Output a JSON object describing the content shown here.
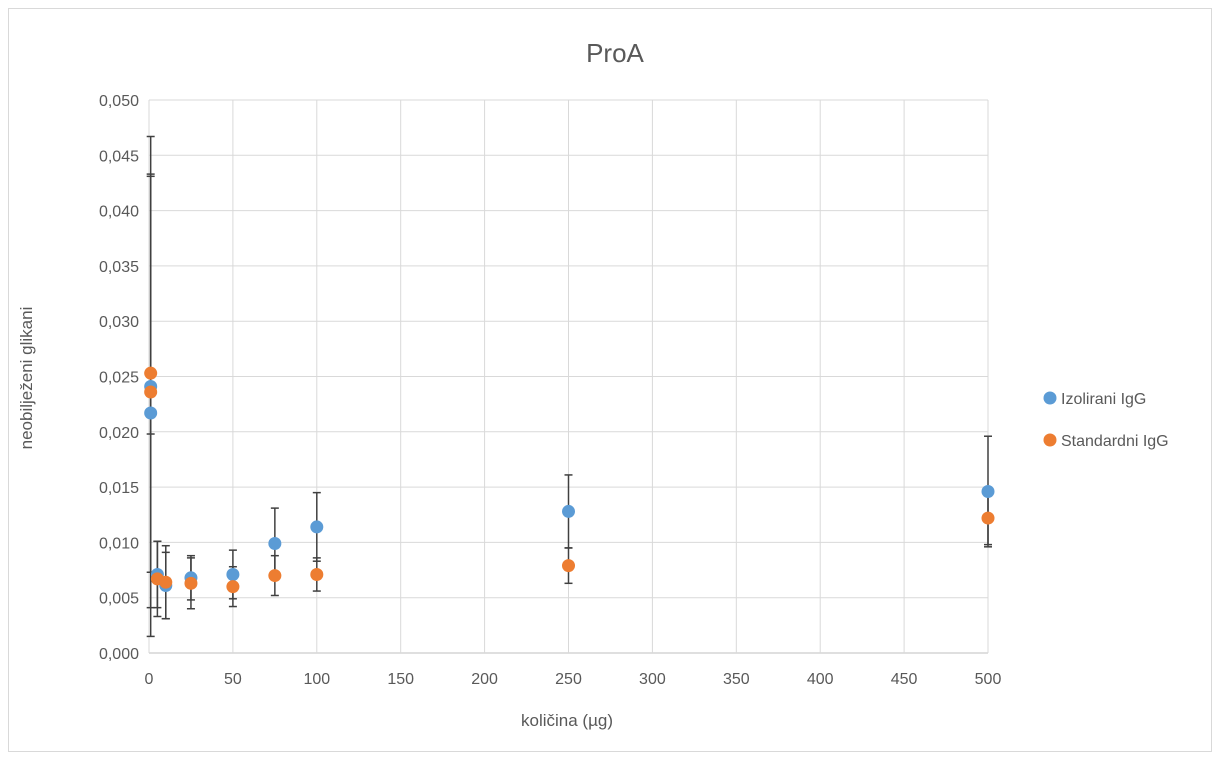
{
  "chart_data": {
    "type": "scatter",
    "title": "ProA",
    "xlabel": "količina (µg)",
    "ylabel": "neobilježeni glikani",
    "xlim": [
      0,
      500
    ],
    "ylim": [
      0,
      0.05
    ],
    "x_ticks": [
      "0",
      "50",
      "100",
      "150",
      "200",
      "250",
      "300",
      "350",
      "400",
      "450",
      "500"
    ],
    "y_ticks": [
      "0,000",
      "0,005",
      "0,010",
      "0,015",
      "0,020",
      "0,025",
      "0,030",
      "0,035",
      "0,040",
      "0,045",
      "0,050"
    ],
    "grid": true,
    "legend_position": "right",
    "error_bars": true,
    "series": [
      {
        "name": "Izolirani IgG",
        "color": "#5b9bd5",
        "points": [
          {
            "x": 1,
            "y": 0.0217,
            "err": 0.0019
          },
          {
            "x": 1,
            "y": 0.0241,
            "err": 0.0226
          },
          {
            "x": 5,
            "y": 0.0071,
            "err": 0.003
          },
          {
            "x": 10,
            "y": 0.0061,
            "err": 0.003
          },
          {
            "x": 25,
            "y": 0.0068,
            "err": 0.002
          },
          {
            "x": 50,
            "y": 0.0071,
            "err": 0.0022
          },
          {
            "x": 75,
            "y": 0.0099,
            "err": 0.0032
          },
          {
            "x": 100,
            "y": 0.0114,
            "err": 0.0031
          },
          {
            "x": 250,
            "y": 0.0128,
            "err": 0.0033
          },
          {
            "x": 500,
            "y": 0.0146,
            "err": 0.005
          }
        ]
      },
      {
        "name": "Standardni IgG",
        "color": "#ed7d31",
        "points": [
          {
            "x": 1,
            "y": 0.0236,
            "err": 0.0195
          },
          {
            "x": 1,
            "y": 0.0253,
            "err": 0.018
          },
          {
            "x": 5,
            "y": 0.0067,
            "err": 0.0034
          },
          {
            "x": 10,
            "y": 0.0064,
            "err": 0.0033
          },
          {
            "x": 25,
            "y": 0.0063,
            "err": 0.0023
          },
          {
            "x": 50,
            "y": 0.006,
            "err": 0.0018
          },
          {
            "x": 75,
            "y": 0.007,
            "err": 0.0018
          },
          {
            "x": 100,
            "y": 0.0071,
            "err": 0.0015
          },
          {
            "x": 250,
            "y": 0.0079,
            "err": 0.0016
          },
          {
            "x": 500,
            "y": 0.0122,
            "err": 0.0024
          }
        ]
      }
    ],
    "colors": {
      "grid": "#d9d9d9",
      "axis": "#bfbfbf",
      "error_bar": "#404040",
      "text": "#595959"
    }
  }
}
